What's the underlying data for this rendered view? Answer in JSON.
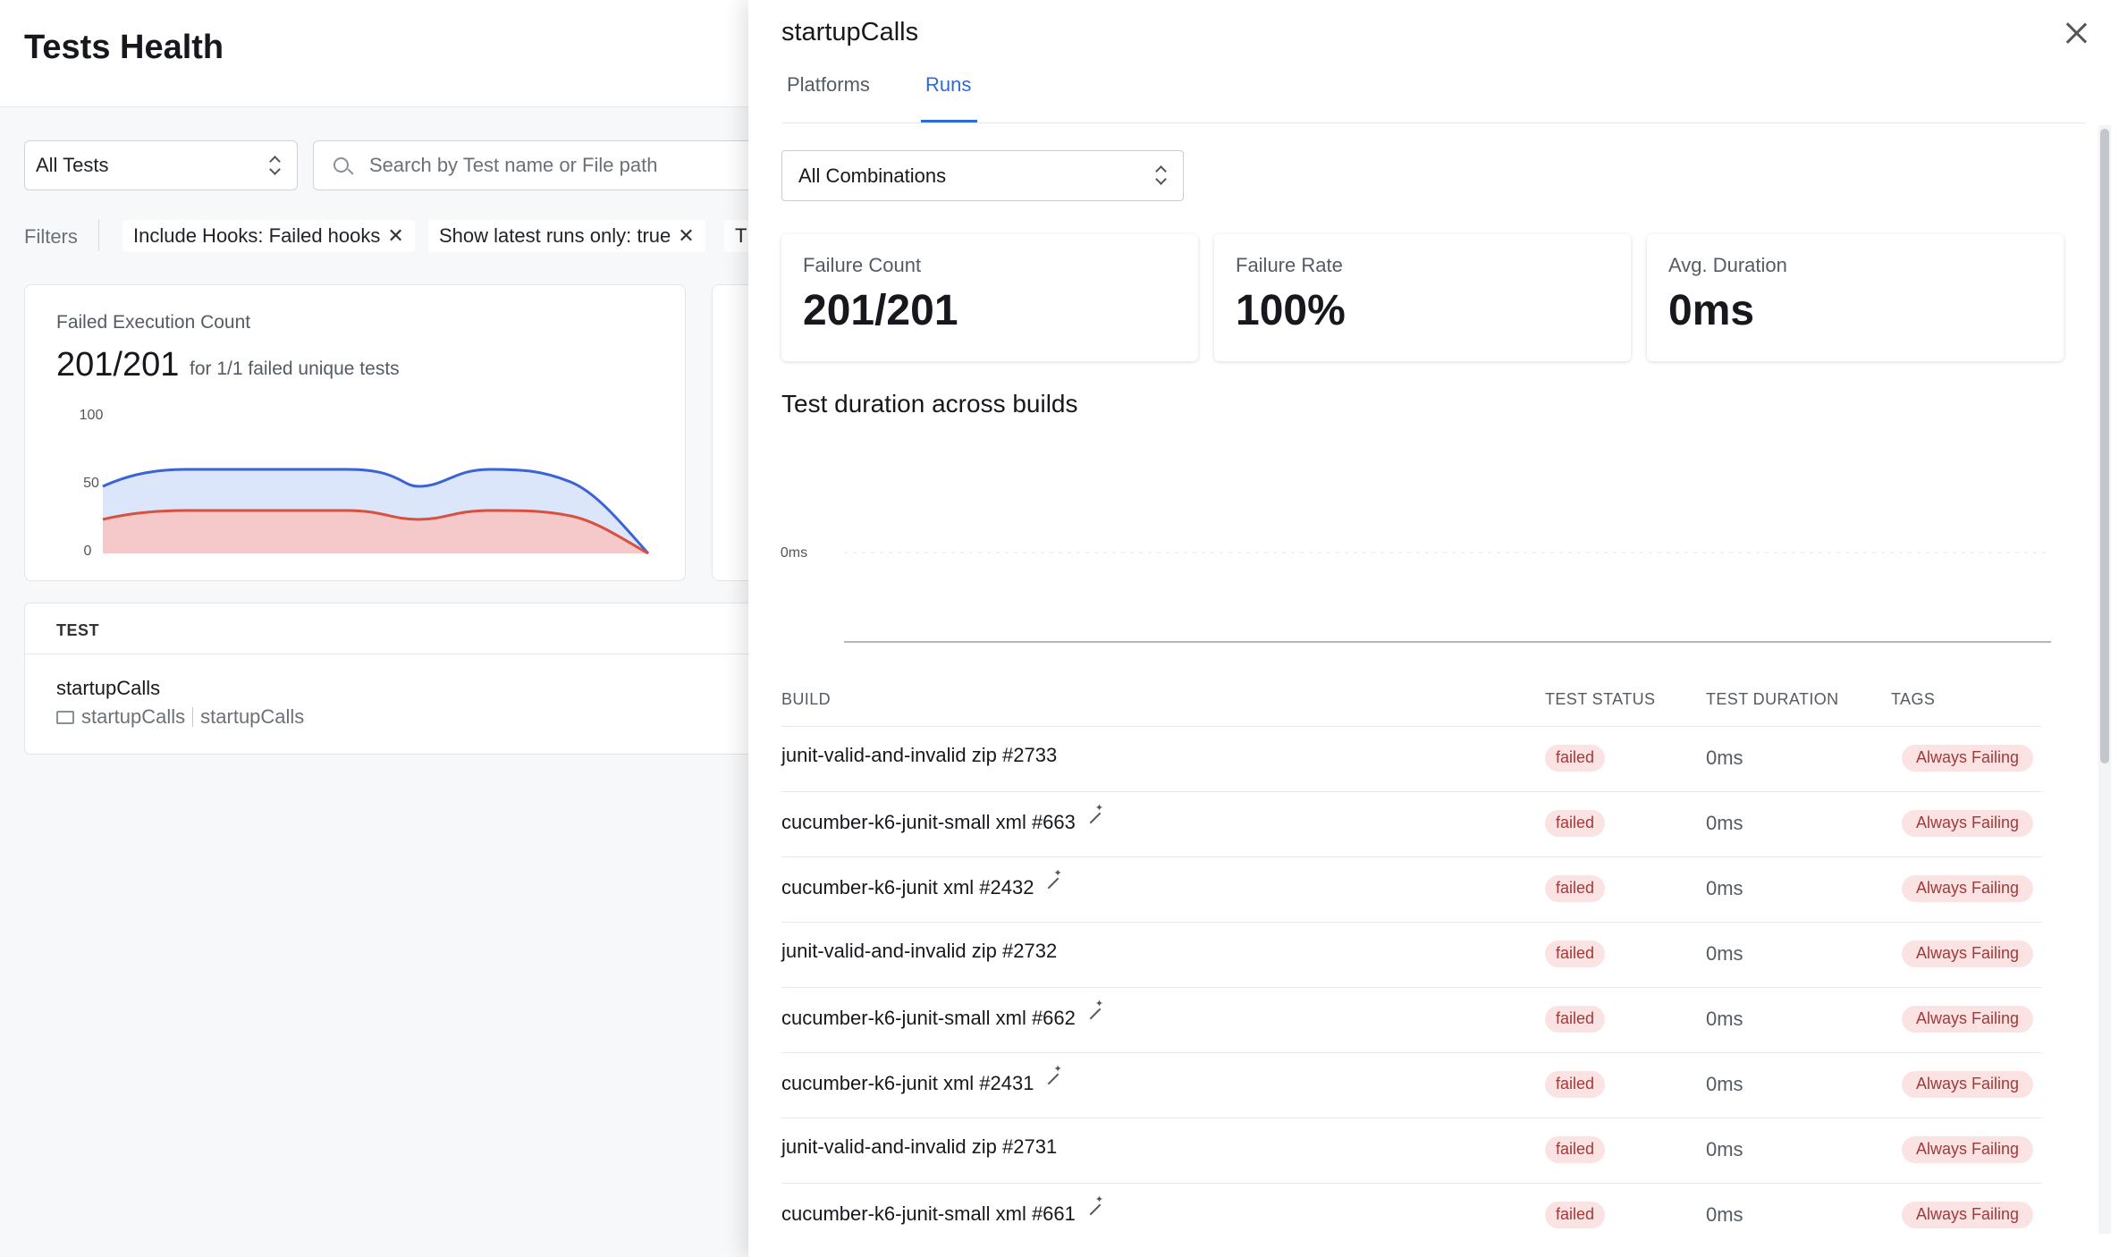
{
  "page": {
    "title": "Tests Health",
    "tests_select": "All Tests",
    "search_placeholder": "Search by Test name or File path",
    "filters_label": "Filters",
    "chips": [
      "Include Hooks: Failed hooks",
      "Show latest runs only: true",
      "T"
    ],
    "failed_execution": {
      "title": "Failed Execution Count",
      "value": "201/201",
      "subtitle": "for 1/1 failed unique tests",
      "y_ticks": [
        "100",
        "50",
        "0"
      ]
    },
    "test_table": {
      "header": "TEST",
      "name": "startupCalls",
      "path_folder": "startupCalls",
      "path_file": "startupCalls"
    }
  },
  "drawer": {
    "title": "startupCalls",
    "tabs": [
      {
        "label": "Platforms",
        "active": false
      },
      {
        "label": "Runs",
        "active": true
      }
    ],
    "combination_select": "All Combinations",
    "metrics": [
      {
        "label": "Failure Count",
        "value": "201/201"
      },
      {
        "label": "Failure Rate",
        "value": "100%"
      },
      {
        "label": "Avg. Duration",
        "value": "0ms"
      }
    ],
    "chart_title": "Test duration across builds",
    "chart_y_tick": "0ms",
    "columns": {
      "build": "BUILD",
      "status": "TEST STATUS",
      "duration": "TEST DURATION",
      "tags": "TAGS"
    },
    "runs": [
      {
        "build": "junit-valid-and-invalid zip #2733",
        "icon": false,
        "status": "failed",
        "duration": "0ms",
        "tag": "Always Failing"
      },
      {
        "build": "cucumber-k6-junit-small xml #663",
        "icon": true,
        "status": "failed",
        "duration": "0ms",
        "tag": "Always Failing"
      },
      {
        "build": "cucumber-k6-junit xml #2432",
        "icon": true,
        "status": "failed",
        "duration": "0ms",
        "tag": "Always Failing"
      },
      {
        "build": "junit-valid-and-invalid zip #2732",
        "icon": false,
        "status": "failed",
        "duration": "0ms",
        "tag": "Always Failing"
      },
      {
        "build": "cucumber-k6-junit-small xml #662",
        "icon": true,
        "status": "failed",
        "duration": "0ms",
        "tag": "Always Failing"
      },
      {
        "build": "cucumber-k6-junit xml #2431",
        "icon": true,
        "status": "failed",
        "duration": "0ms",
        "tag": "Always Failing"
      },
      {
        "build": "junit-valid-and-invalid zip #2731",
        "icon": false,
        "status": "failed",
        "duration": "0ms",
        "tag": "Always Failing"
      },
      {
        "build": "cucumber-k6-junit-small xml #661",
        "icon": true,
        "status": "failed",
        "duration": "0ms",
        "tag": "Always Failing"
      }
    ]
  },
  "colors": {
    "accent": "#2f6bd8",
    "series_total": "#3a63d6",
    "series_failed": "#d9503f",
    "badge_bg": "#fbe3e3",
    "badge_text": "#a13a3a"
  }
}
